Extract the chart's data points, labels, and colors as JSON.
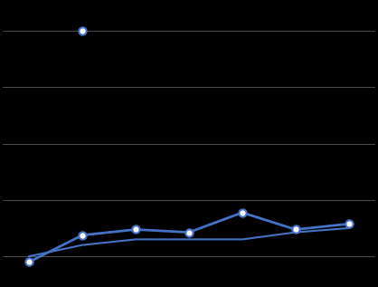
{
  "background_color": "#000000",
  "grid_color": "#4d4d4d",
  "line_color": "#4472C4",
  "marker_color": "#ffffff",
  "marker_edge_color": "#4472C4",
  "figsize": [
    4.18,
    3.17
  ],
  "dpi": 100,
  "ylim": [
    60,
    260
  ],
  "xlim": [
    0.5,
    7.5
  ],
  "yticks": [
    80,
    120,
    160,
    200,
    240
  ],
  "xticks": [
    1,
    2,
    3,
    4,
    5,
    6,
    7
  ],
  "series1_x": [
    1,
    2,
    3,
    4,
    5,
    6,
    7
  ],
  "series1_y": [
    76,
    95,
    99,
    97,
    111,
    99,
    103
  ],
  "series2_x": [
    1,
    2,
    3,
    4,
    5,
    6,
    7
  ],
  "series2_y": [
    80,
    88,
    92,
    92,
    92,
    97,
    100
  ],
  "outlier_x": 2,
  "outlier_y": 240
}
